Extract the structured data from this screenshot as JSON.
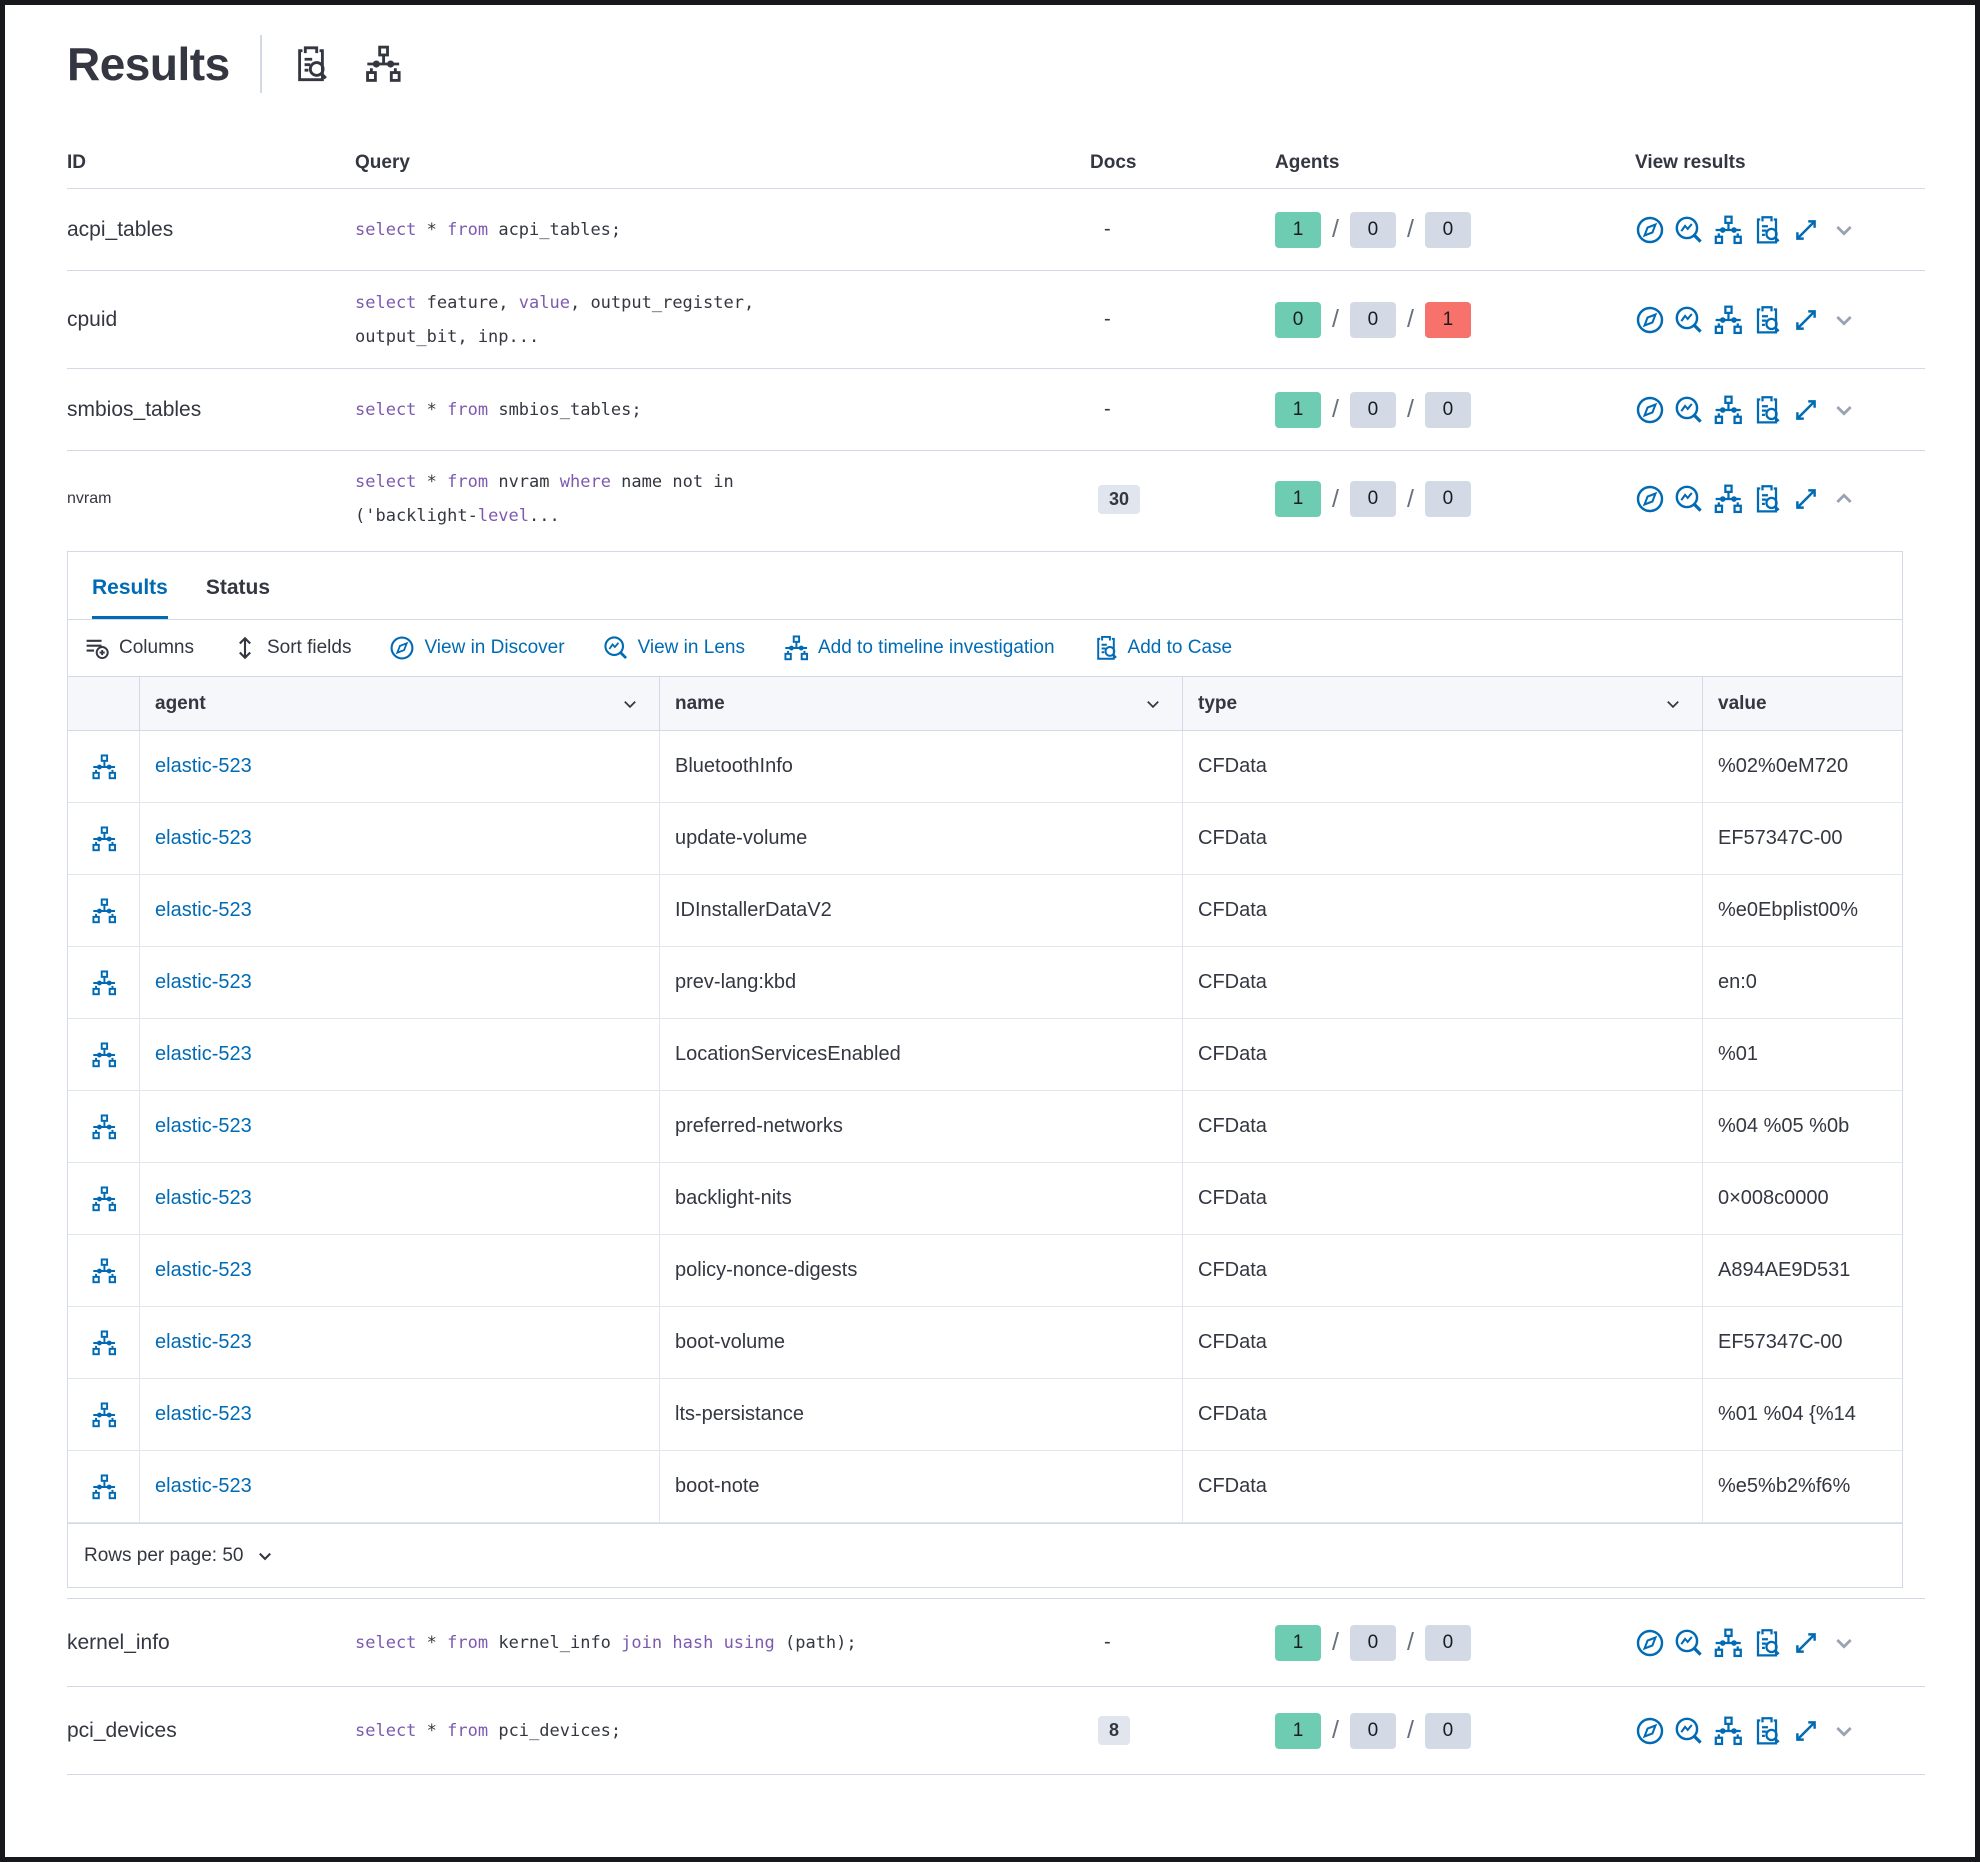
{
  "colors": {
    "primary_blue": "#006bb4",
    "keyword_purple": "#7d5aaf",
    "success_green": "#6dccb1",
    "danger_red": "#f6726a",
    "neutral_badge": "#d3dae6",
    "docs_badge": "#e0e5ee",
    "text": "#343741",
    "border": "#d3dae6"
  },
  "header": {
    "title": "Results",
    "icons": [
      "inspect-icon",
      "timeline-icon"
    ]
  },
  "queries_table": {
    "columns": {
      "id": "ID",
      "query": "Query",
      "docs": "Docs",
      "agents": "Agents",
      "view": "View results"
    },
    "view_icons": [
      "discover-icon",
      "lens-icon",
      "timeline-icon",
      "inspect-icon",
      "expand-icon",
      "chevron-icon"
    ],
    "rows": [
      {
        "id": "acpi_tables",
        "docs": "-",
        "agents": [
          "1",
          "0",
          "0"
        ],
        "query": [
          [
            [
              "select",
              true
            ],
            [
              " * ",
              false
            ],
            [
              "from",
              true
            ],
            [
              " acpi_tables;",
              false
            ]
          ]
        ]
      },
      {
        "id": "cpuid",
        "docs": "-",
        "agents": [
          "0",
          "0",
          "1"
        ],
        "query": [
          [
            [
              "select",
              true
            ],
            [
              " feature, ",
              false
            ],
            [
              "value",
              true
            ],
            [
              ", output_register,",
              false
            ]
          ],
          [
            [
              "output_bit, inp...",
              false
            ]
          ]
        ]
      },
      {
        "id": "smbios_tables",
        "docs": "-",
        "agents": [
          "1",
          "0",
          "0"
        ],
        "query": [
          [
            [
              "select",
              true
            ],
            [
              " * ",
              false
            ],
            [
              "from",
              true
            ],
            [
              " smbios_tables;",
              false
            ]
          ]
        ]
      },
      {
        "id": "nvram",
        "docs": "30",
        "agents": [
          "1",
          "0",
          "0"
        ],
        "query": [
          [
            [
              "select",
              true
            ],
            [
              " * ",
              false
            ],
            [
              "from",
              true
            ],
            [
              " nvram ",
              false
            ],
            [
              "where",
              true
            ],
            [
              " name not in",
              false
            ]
          ],
          [
            [
              "('backlight-",
              false
            ],
            [
              "level",
              true
            ],
            [
              "...",
              false
            ]
          ]
        ]
      },
      {
        "id": "kernel_info",
        "docs": "-",
        "agents": [
          "1",
          "0",
          "0"
        ],
        "query": [
          [
            [
              "select",
              true
            ],
            [
              " * ",
              false
            ],
            [
              "from",
              true
            ],
            [
              " kernel_info ",
              false
            ],
            [
              "join",
              true
            ],
            [
              " ",
              false
            ],
            [
              "hash",
              true
            ],
            [
              " ",
              false
            ],
            [
              "using",
              true
            ],
            [
              " (path);",
              false
            ]
          ]
        ]
      },
      {
        "id": "pci_devices",
        "docs": "8",
        "agents": [
          "1",
          "0",
          "0"
        ],
        "query": [
          [
            [
              "select",
              true
            ],
            [
              " * ",
              false
            ],
            [
              "from",
              true
            ],
            [
              " pci_devices;",
              false
            ]
          ]
        ]
      }
    ]
  },
  "expanded": {
    "tabs": [
      {
        "label": "Results"
      },
      {
        "label": "Status"
      }
    ],
    "toolbar": [
      {
        "label": "Columns",
        "icon": "columns-icon"
      },
      {
        "label": "Sort fields",
        "icon": "sort-icon"
      },
      {
        "label": "View in Discover",
        "icon": "discover-icon"
      },
      {
        "label": "View in Lens",
        "icon": "lens-icon"
      },
      {
        "label": "Add to timeline investigation",
        "icon": "timeline-icon"
      },
      {
        "label": "Add to Case",
        "icon": "inspect-icon"
      }
    ],
    "grid": {
      "columns": {
        "agent": "agent",
        "name": "name",
        "type": "type",
        "value": "value"
      },
      "rows": [
        {
          "agent": "elastic-523",
          "name": "BluetoothInfo",
          "type": "CFData",
          "value": "%02%0eM720"
        },
        {
          "agent": "elastic-523",
          "name": "update-volume",
          "type": "CFData",
          "value": "EF57347C-00"
        },
        {
          "agent": "elastic-523",
          "name": "IDInstallerDataV2",
          "type": "CFData",
          "value": "%e0Ebplist00%"
        },
        {
          "agent": "elastic-523",
          "name": "prev-lang:kbd",
          "type": "CFData",
          "value": "en:0"
        },
        {
          "agent": "elastic-523",
          "name": "LocationServicesEnabled",
          "type": "CFData",
          "value": "%01"
        },
        {
          "agent": "elastic-523",
          "name": "preferred-networks",
          "type": "CFData",
          "value": "%04 %05 %0b"
        },
        {
          "agent": "elastic-523",
          "name": "backlight-nits",
          "type": "CFData",
          "value": "0×008c0000"
        },
        {
          "agent": "elastic-523",
          "name": "policy-nonce-digests",
          "type": "CFData",
          "value": "A894AE9D531"
        },
        {
          "agent": "elastic-523",
          "name": "boot-volume",
          "type": "CFData",
          "value": "EF57347C-00"
        },
        {
          "agent": "elastic-523",
          "name": "lts-persistance",
          "type": "CFData",
          "value": "%01 %04 {%14"
        },
        {
          "agent": "elastic-523",
          "name": "boot-note",
          "type": "CFData",
          "value": "%e5%b2%f6%"
        }
      ]
    },
    "pagination": {
      "label": "Rows per page: 50"
    }
  }
}
